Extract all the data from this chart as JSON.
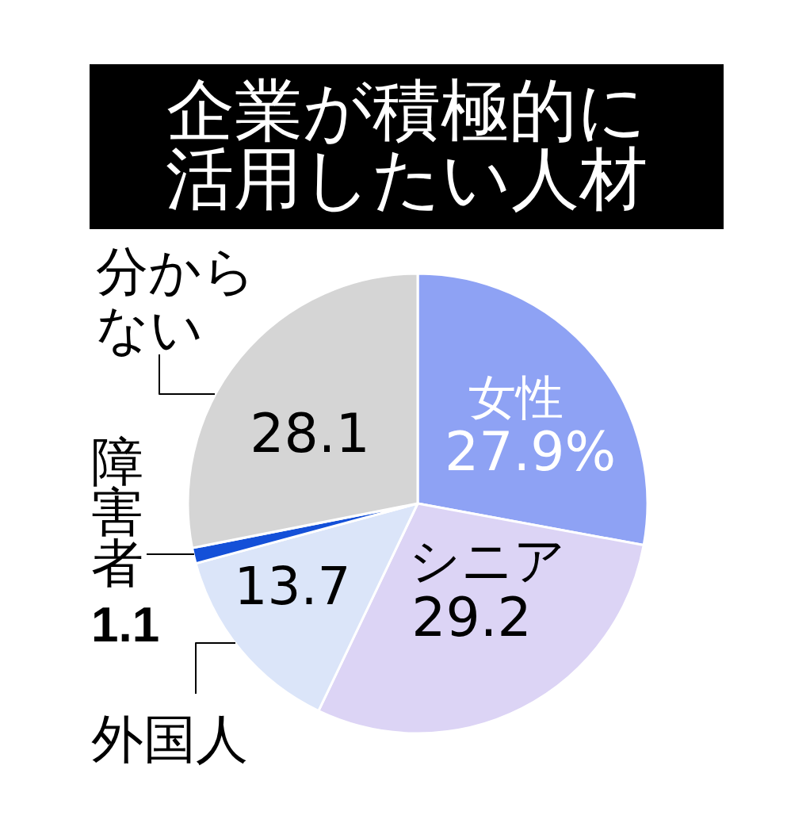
{
  "chart_data": {
    "type": "pie",
    "title": "企業が積極的に活用したい人材",
    "categories": [
      "女性",
      "シニア",
      "外国人",
      "障害者",
      "分からない"
    ],
    "values": [
      27.9,
      29.2,
      13.7,
      1.1,
      28.1
    ],
    "colors": [
      "#8ea2f4",
      "#dcd4f5",
      "#dbe5f9",
      "#1450d8",
      "#d5d5d5"
    ],
    "value_labels": [
      "27.9%",
      "29.2",
      "13.7",
      "1.1",
      "28.1"
    ]
  }
}
